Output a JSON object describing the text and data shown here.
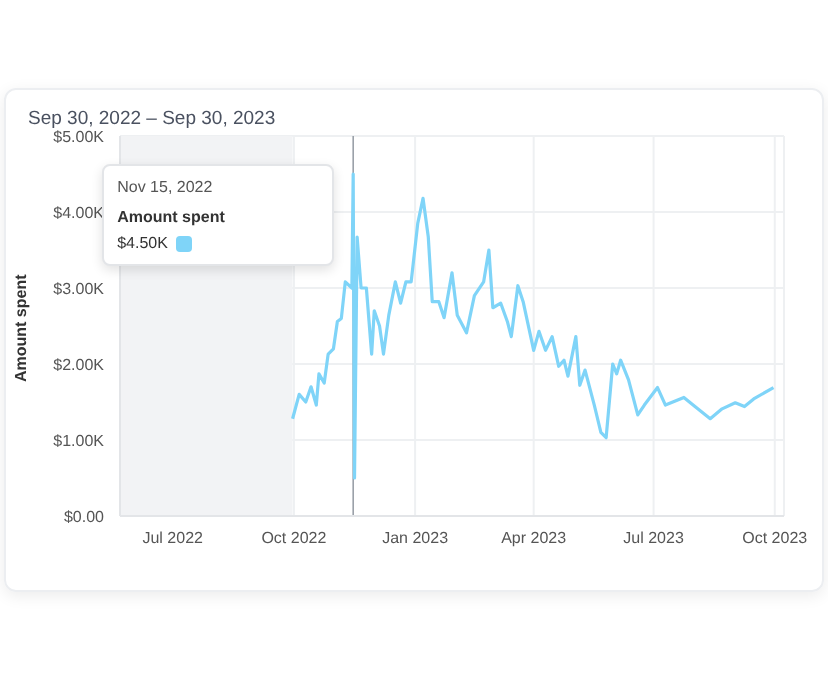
{
  "chart_data": {
    "type": "line",
    "title": "Sep 30, 2022 – Sep 30, 2023",
    "ylabel": "Amount spent",
    "x": [
      "2022-09-30",
      "2022-10-05",
      "2022-10-10",
      "2022-10-14",
      "2022-10-18",
      "2022-10-20",
      "2022-10-24",
      "2022-10-27",
      "2022-10-31",
      "2022-11-03",
      "2022-11-06",
      "2022-11-09",
      "2022-11-14",
      "2022-11-15",
      "2022-11-16",
      "2022-11-18",
      "2022-11-21",
      "2022-11-25",
      "2022-11-29",
      "2022-12-01",
      "2022-12-05",
      "2022-12-08",
      "2022-12-12",
      "2022-12-17",
      "2022-12-21",
      "2022-12-25",
      "2022-12-29",
      "2023-01-03",
      "2023-01-07",
      "2023-01-11",
      "2023-01-14",
      "2023-01-19",
      "2023-01-23",
      "2023-01-29",
      "2023-02-02",
      "2023-02-09",
      "2023-02-15",
      "2023-02-22",
      "2023-02-26",
      "2023-03-01",
      "2023-03-07",
      "2023-03-12",
      "2023-03-15",
      "2023-03-20",
      "2023-03-24",
      "2023-04-01",
      "2023-04-05",
      "2023-04-10",
      "2023-04-15",
      "2023-04-20",
      "2023-04-24",
      "2023-04-27",
      "2023-05-03",
      "2023-05-06",
      "2023-05-10",
      "2023-05-17",
      "2023-05-22",
      "2023-05-26",
      "2023-05-31",
      "2023-06-03",
      "2023-06-06",
      "2023-06-12",
      "2023-06-19",
      "2023-06-24",
      "2023-07-04",
      "2023-07-10",
      "2023-07-24",
      "2023-07-31",
      "2023-08-13",
      "2023-08-22",
      "2023-09-01",
      "2023-09-08",
      "2023-09-15",
      "2023-09-30"
    ],
    "series": [
      {
        "color": "#7fd4f8",
        "values": [
          1280,
          1600,
          1500,
          1700,
          1460,
          1870,
          1750,
          2130,
          2200,
          2560,
          2600,
          3080,
          3000,
          4500,
          500,
          3670,
          3000,
          3000,
          2130,
          2700,
          2500,
          2130,
          2640,
          3080,
          2800,
          3080,
          3080,
          3850,
          4180,
          3670,
          2820,
          2820,
          2610,
          3200,
          2640,
          2410,
          2900,
          3080,
          3500,
          2740,
          2800,
          2560,
          2360,
          3030,
          2820,
          2180,
          2430,
          2180,
          2360,
          1970,
          2050,
          1840,
          2360,
          1720,
          1920,
          1460,
          1100,
          1030,
          2000,
          1870,
          2050,
          1790,
          1330,
          1460,
          1690,
          1460,
          1560,
          1460,
          1280,
          1410,
          1490,
          1440,
          1540,
          1690
        ]
      }
    ],
    "xlim": [
      "2022-05-22",
      "2023-10-08"
    ],
    "xticks": [
      {
        "value": "2022-07-01",
        "label": "Jul 2022"
      },
      {
        "value": "2022-10-01",
        "label": "Oct 2022"
      },
      {
        "value": "2023-01-01",
        "label": "Jan 2023"
      },
      {
        "value": "2023-04-01",
        "label": "Apr 2023"
      },
      {
        "value": "2023-07-01",
        "label": "Jul 2023"
      },
      {
        "value": "2023-10-01",
        "label": "Oct 2023"
      }
    ],
    "ylim": [
      0,
      5000
    ],
    "yticks": [
      {
        "value": 0,
        "label": "$0.00"
      },
      {
        "value": 1000,
        "label": "$1.00K"
      },
      {
        "value": 2000,
        "label": "$2.00K"
      },
      {
        "value": 3000,
        "label": "$3.00K"
      },
      {
        "value": 4000,
        "label": "$4.00K"
      },
      {
        "value": 5000,
        "label": "$5.00K"
      }
    ],
    "bands": [
      {
        "axis": "x",
        "from": "2022-05-22",
        "to": "2022-09-30",
        "color": "#f2f3f5"
      }
    ],
    "ref_lines": [
      {
        "axis": "x",
        "value": "2022-11-15",
        "color": "#9aa0a8"
      }
    ],
    "annotations": [
      "Nov 15, 2022",
      "Amount spent",
      "$4.50K"
    ],
    "grid": true,
    "legend": false,
    "marker": "none",
    "line_style": "solid"
  }
}
